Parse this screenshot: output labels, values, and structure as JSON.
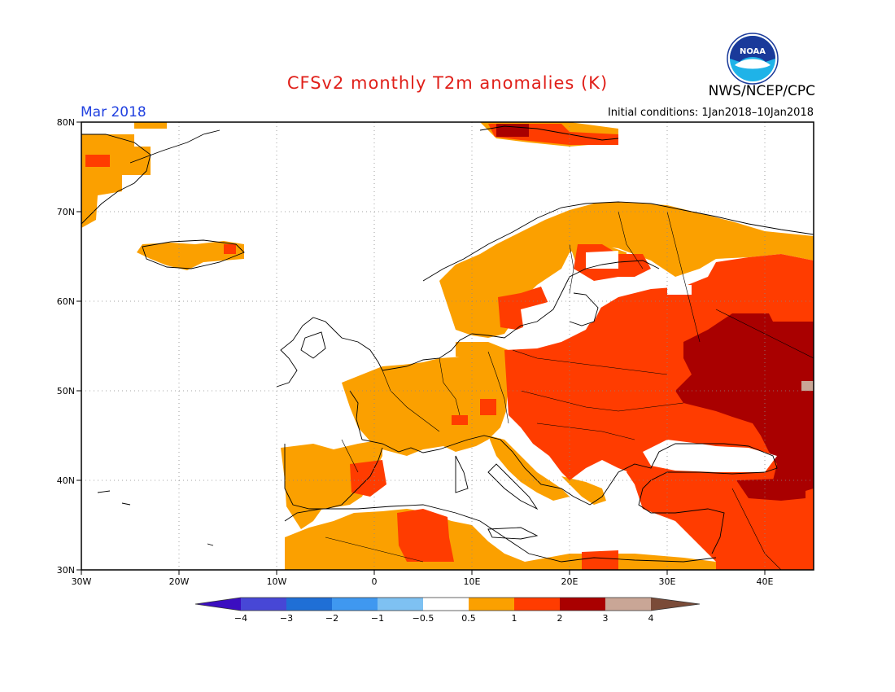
{
  "header": {
    "title": "CFSv2 monthly T2m anomalies (K)",
    "credit": "NWS/NCEP/CPC",
    "valid_month": "Mar 2018",
    "initial_conditions": "Initial conditions: 1Jan2018–10Jan2018",
    "logo_text": "NOAA"
  },
  "map": {
    "region": "Europe",
    "lon_range": [
      -30,
      45
    ],
    "lat_range": [
      30,
      80
    ],
    "gridlines": "dotted",
    "lat_ticks": [
      "30N",
      "40N",
      "50N",
      "60N",
      "70N",
      "80N"
    ],
    "lon_ticks": [
      "30W",
      "20W",
      "10W",
      "0",
      "10E",
      "20E",
      "30E",
      "40E"
    ]
  },
  "legend": {
    "labels": [
      "−4",
      "−3",
      "−2",
      "−1",
      "−0.5",
      "0.5",
      "1",
      "2",
      "3",
      "4"
    ],
    "colors": [
      "#3b0ec0",
      "#4747d6",
      "#1f6fd6",
      "#3f98f0",
      "#7ec1f2",
      "#ffffff",
      "#fba000",
      "#ff3c00",
      "#a90000",
      "#c9a696",
      "#7a4b38"
    ]
  }
}
